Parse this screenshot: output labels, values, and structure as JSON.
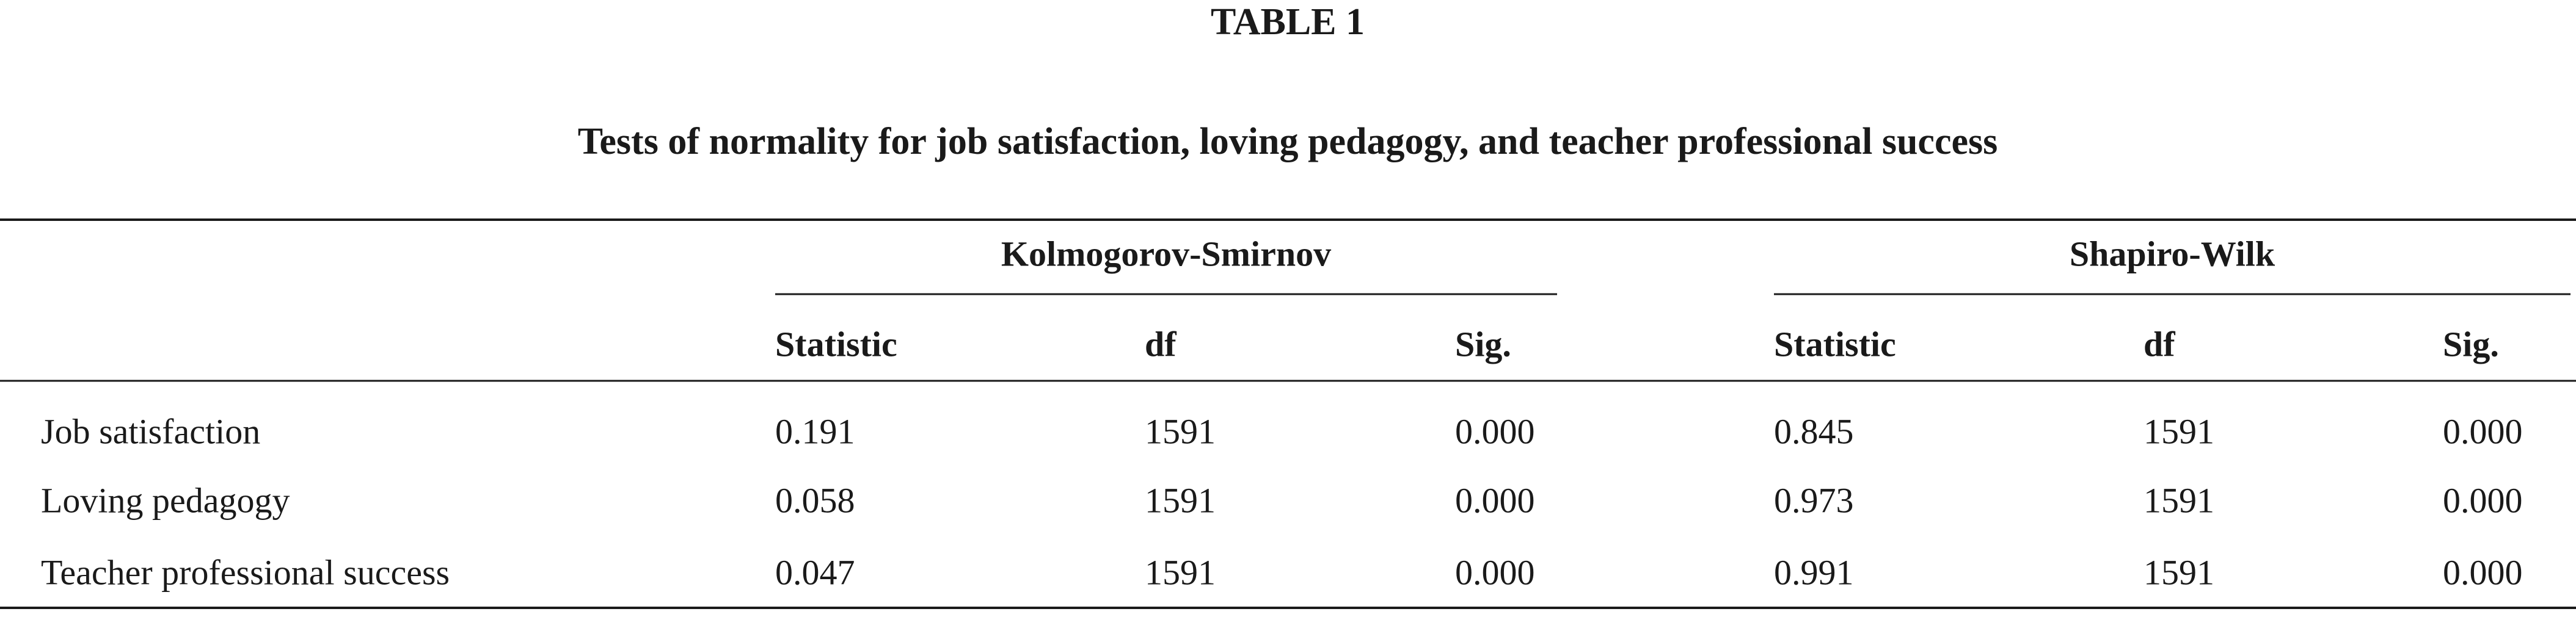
{
  "header": {
    "label": "TABLE 1",
    "title": "Tests of normality for job satisfaction, loving pedagogy, and teacher professional success"
  },
  "table": {
    "groups": [
      "Kolmogorov-Smirnov",
      "Shapiro-Wilk"
    ],
    "columns": [
      "Statistic",
      "df",
      "Sig.",
      "Statistic",
      "df",
      "Sig."
    ],
    "rows": [
      [
        "Job satisfaction",
        "0.191",
        "1591",
        "0.000",
        "0.845",
        "1591",
        "0.000"
      ],
      [
        "Loving pedagogy",
        "0.058",
        "1591",
        "0.000",
        "0.973",
        "1591",
        "0.000"
      ],
      [
        "Teacher professional success",
        "0.047",
        "1591",
        "0.000",
        "0.991",
        "1591",
        "0.000"
      ]
    ]
  }
}
